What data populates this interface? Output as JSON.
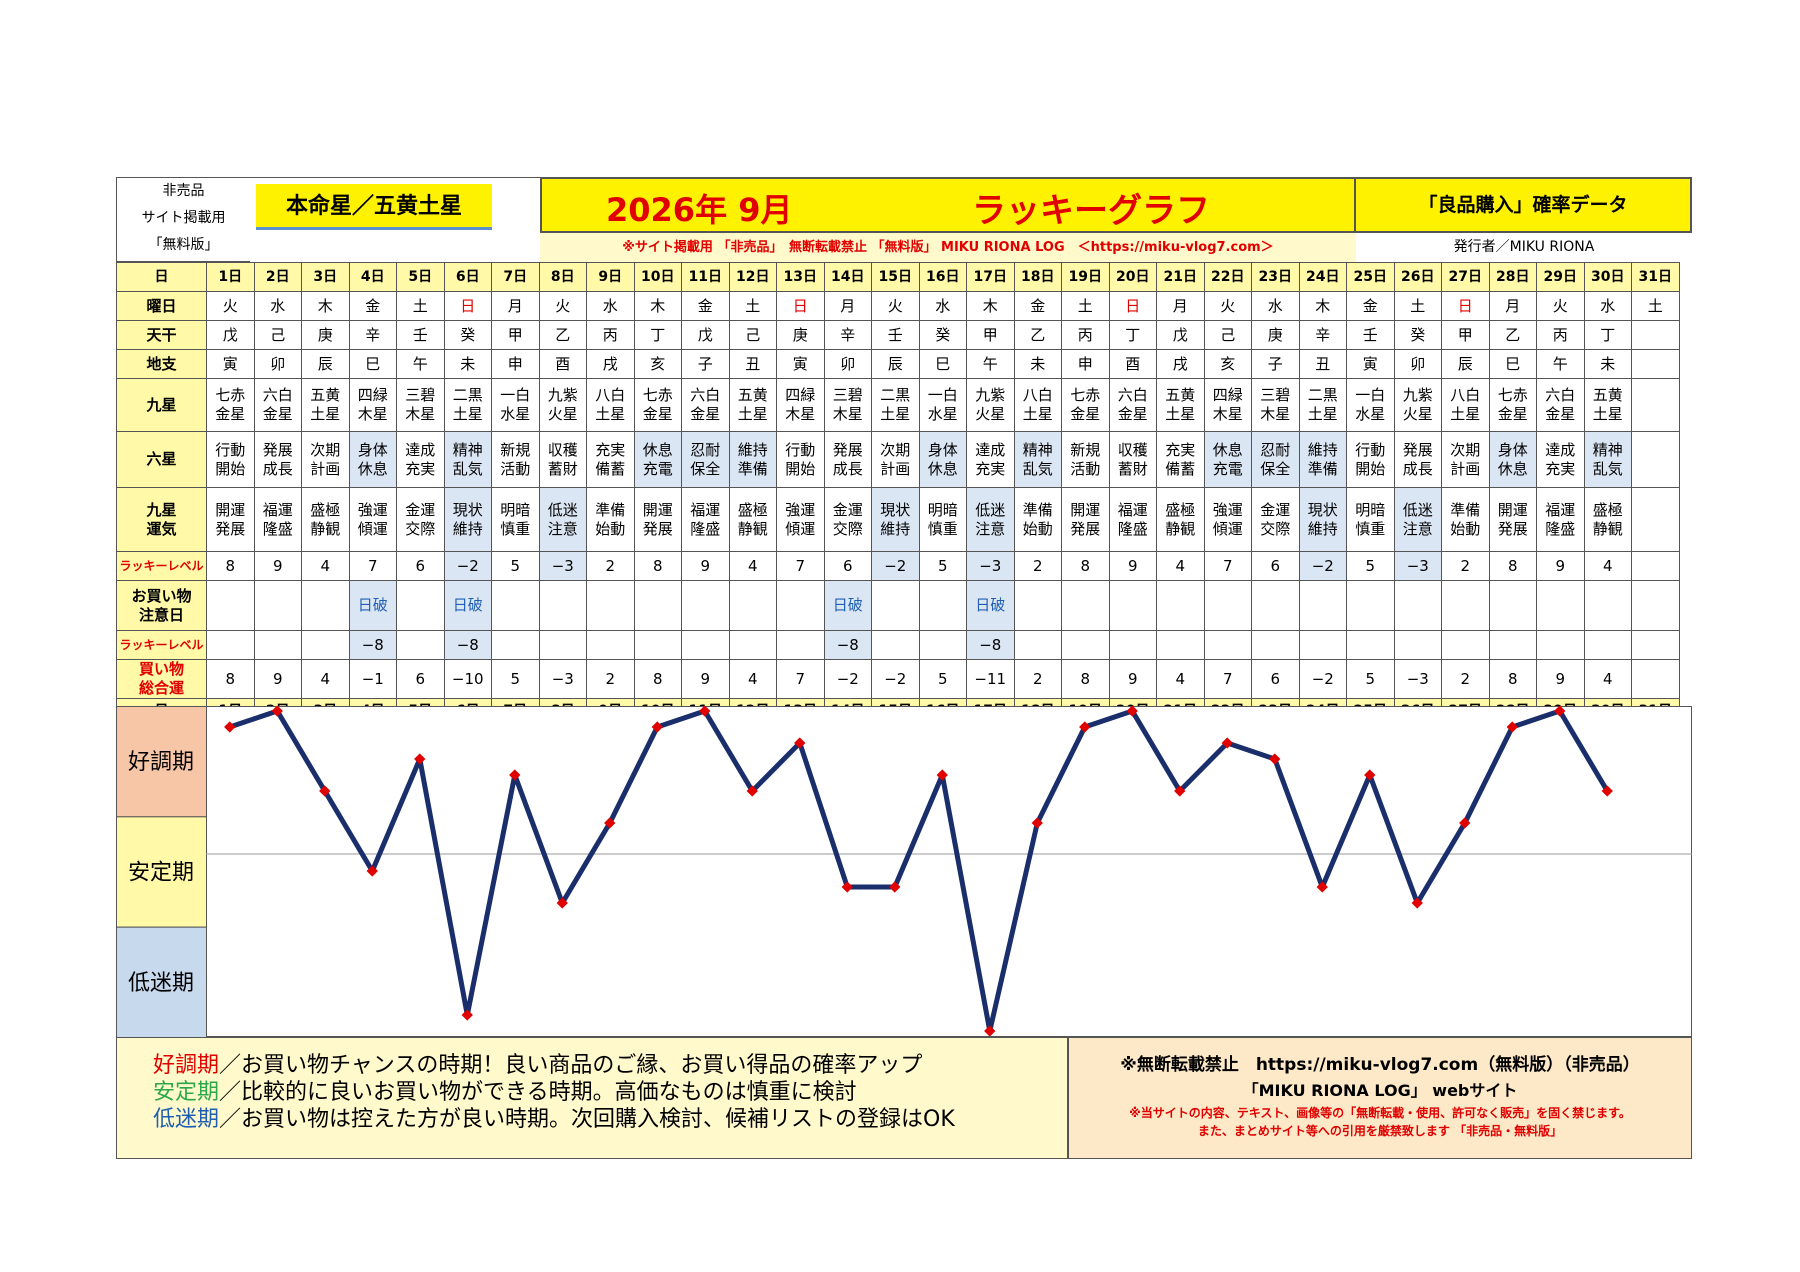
{
  "header": {
    "corner_lines": [
      "非売品",
      "サイト掲載用",
      "「無料版」"
    ],
    "star_label": "本命星／五黄土星",
    "month": "2026年 9月",
    "title": "ラッキーグラフ",
    "data_label": "「良品購入」確率データ",
    "subline": "※サイト掲載用 「非売品」　無断転載禁止 「無料版」 MIKU RIONA LOG　＜https://miku-vlog7.com＞",
    "publisher": "発行者／MIKU RIONA"
  },
  "row_labels": {
    "day": "日",
    "weekday": "曜日",
    "tenkan": "天干",
    "chishi": "地支",
    "kyusei": "九星",
    "rokusei": "六星",
    "unki": "九星\n運気",
    "lucky": "ラッキーレベル",
    "caution": "お買い物\n注意日",
    "lucky2": "ラッキーレベル",
    "total": "買い物\n総合運"
  },
  "days": [
    "1日",
    "2日",
    "3日",
    "4日",
    "5日",
    "6日",
    "7日",
    "8日",
    "9日",
    "10日",
    "11日",
    "12日",
    "13日",
    "14日",
    "15日",
    "16日",
    "17日",
    "18日",
    "19日",
    "20日",
    "21日",
    "22日",
    "23日",
    "24日",
    "25日",
    "26日",
    "27日",
    "28日",
    "29日",
    "30日",
    "31日"
  ],
  "weekdays": [
    "火",
    "水",
    "木",
    "金",
    "土",
    "日",
    "月",
    "火",
    "水",
    "木",
    "金",
    "土",
    "日",
    "月",
    "火",
    "水",
    "木",
    "金",
    "土",
    "日",
    "月",
    "火",
    "水",
    "木",
    "金",
    "土",
    "日",
    "月",
    "火",
    "水",
    "土"
  ],
  "tenkan": [
    "戊",
    "己",
    "庚",
    "辛",
    "壬",
    "癸",
    "甲",
    "乙",
    "丙",
    "丁",
    "戊",
    "己",
    "庚",
    "辛",
    "壬",
    "癸",
    "甲",
    "乙",
    "丙",
    "丁",
    "戊",
    "己",
    "庚",
    "辛",
    "壬",
    "癸",
    "甲",
    "乙",
    "丙",
    "丁",
    ""
  ],
  "chishi": [
    "寅",
    "卯",
    "辰",
    "巳",
    "午",
    "未",
    "申",
    "酉",
    "戌",
    "亥",
    "子",
    "丑",
    "寅",
    "卯",
    "辰",
    "巳",
    "午",
    "未",
    "申",
    "酉",
    "戌",
    "亥",
    "子",
    "丑",
    "寅",
    "卯",
    "辰",
    "巳",
    "午",
    "未",
    ""
  ],
  "kyusei": [
    "七赤\n金星",
    "六白\n金星",
    "五黄\n土星",
    "四緑\n木星",
    "三碧\n木星",
    "二黒\n土星",
    "一白\n水星",
    "九紫\n火星",
    "八白\n土星",
    "七赤\n金星",
    "六白\n金星",
    "五黄\n土星",
    "四緑\n木星",
    "三碧\n木星",
    "二黒\n土星",
    "一白\n水星",
    "九紫\n火星",
    "八白\n土星",
    "七赤\n金星",
    "六白\n金星",
    "五黄\n土星",
    "四緑\n木星",
    "三碧\n木星",
    "二黒\n土星",
    "一白\n水星",
    "九紫\n火星",
    "八白\n土星",
    "七赤\n金星",
    "六白\n金星",
    "五黄\n土星",
    ""
  ],
  "rokusei": [
    "行動\n開始",
    "発展\n成長",
    "次期\n計画",
    "身体\n休息",
    "達成\n充実",
    "精神\n乱気",
    "新規\n活動",
    "収穫\n蓄財",
    "充実\n備蓄",
    "休息\n充電",
    "忍耐\n保全",
    "維持\n準備",
    "行動\n開始",
    "発展\n成長",
    "次期\n計画",
    "身体\n休息",
    "達成\n充実",
    "精神\n乱気",
    "新規\n活動",
    "収穫\n蓄財",
    "充実\n備蓄",
    "休息\n充電",
    "忍耐\n保全",
    "維持\n準備",
    "行動\n開始",
    "発展\n成長",
    "次期\n計画",
    "身体\n休息",
    "達成\n充実",
    "精神\n乱気",
    ""
  ],
  "unki": [
    "開運\n発展",
    "福運\n隆盛",
    "盛極\n静観",
    "強運\n傾運",
    "金運\n交際",
    "現状\n維持",
    "明暗\n慎重",
    "低迷\n注意",
    "準備\n始動",
    "開運\n発展",
    "福運\n隆盛",
    "盛極\n静観",
    "強運\n傾運",
    "金運\n交際",
    "現状\n維持",
    "明暗\n慎重",
    "低迷\n注意",
    "準備\n始動",
    "開運\n発展",
    "福運\n隆盛",
    "盛極\n静観",
    "強運\n傾運",
    "金運\n交際",
    "現状\n維持",
    "明暗\n慎重",
    "低迷\n注意",
    "準備\n始動",
    "開運\n発展",
    "福運\n隆盛",
    "盛極\n静観",
    ""
  ],
  "lucky_level": [
    "8",
    "9",
    "4",
    "7",
    "6",
    "−2",
    "5",
    "−3",
    "2",
    "8",
    "9",
    "4",
    "7",
    "6",
    "−2",
    "5",
    "−3",
    "2",
    "8",
    "9",
    "4",
    "7",
    "6",
    "−2",
    "5",
    "−3",
    "2",
    "8",
    "9",
    "4",
    ""
  ],
  "caution": [
    "",
    "",
    "",
    "日破",
    "",
    "日破",
    "",
    "",
    "",
    "",
    "",
    "",
    "",
    "日破",
    "",
    "",
    "日破",
    "",
    "",
    "",
    "",
    "",
    "",
    "",
    "",
    "",
    "",
    "",
    "",
    "",
    ""
  ],
  "lucky_level2": [
    "",
    "",
    "",
    "−8",
    "",
    "−8",
    "",
    "",
    "",
    "",
    "",
    "",
    "",
    "−8",
    "",
    "",
    "−8",
    "",
    "",
    "",
    "",
    "",
    "",
    "",
    "",
    "",
    "",
    "",
    "",
    "",
    ""
  ],
  "total_display": [
    "8",
    "9",
    "4",
    "−1",
    "6",
    "−10",
    "5",
    "−3",
    "2",
    "8",
    "9",
    "4",
    "7",
    "−2",
    "−2",
    "5",
    "−11",
    "2",
    "8",
    "9",
    "4",
    "7",
    "6",
    "−2",
    "5",
    "−3",
    "2",
    "8",
    "9",
    "4",
    ""
  ],
  "chart_data": {
    "type": "line",
    "x": [
      1,
      2,
      3,
      4,
      5,
      6,
      7,
      8,
      9,
      10,
      11,
      12,
      13,
      14,
      15,
      16,
      17,
      18,
      19,
      20,
      21,
      22,
      23,
      24,
      25,
      26,
      27,
      28,
      29,
      30
    ],
    "values": [
      8,
      9,
      4,
      -1,
      6,
      -10,
      5,
      -3,
      2,
      8,
      9,
      4,
      7,
      -2,
      -2,
      5,
      -11,
      2,
      8,
      9,
      4,
      7,
      6,
      -2,
      5,
      -3,
      2,
      8,
      9,
      4
    ],
    "ylim": [
      -11,
      9
    ],
    "bands": [
      "好調期",
      "安定期",
      "低迷期"
    ],
    "line_color": "#1a2e6b",
    "point_color": "#e00000"
  },
  "legend": [
    {
      "term": "好調期",
      "text": "／お買い物チャンスの時期！良い商品のご縁、お買い得品の確率アップ",
      "color": "#e00000"
    },
    {
      "term": "安定期",
      "text": "／比較的に良いお買い物ができる時期。高価なものは慎重に検討",
      "color": "#2ba84a"
    },
    {
      "term": "低迷期",
      "text": "／お買い物は控えた方が良い時期。次回購入検討、候補リストの登録はOK",
      "color": "#1f5fb3"
    }
  ],
  "notice": {
    "line1": "※無断転載禁止　https://miku-vlog7.com（無料版）（非売品）",
    "line2": "「MIKU RIONA LOG」 webサイト",
    "line3": "※当サイトの内容、テキスト、画像等の「無断転載・使用、許可なく販売」を固く禁じます。",
    "line4": "また、まとめサイト等への引用を厳禁致します 「非売品・無料版」"
  },
  "colors": {
    "band_good": "#f7c6a6",
    "band_stable": "#fff9a8",
    "band_low": "#c7d9ed",
    "label_yellow": "#fff9a8",
    "title_red": "#e00000"
  }
}
